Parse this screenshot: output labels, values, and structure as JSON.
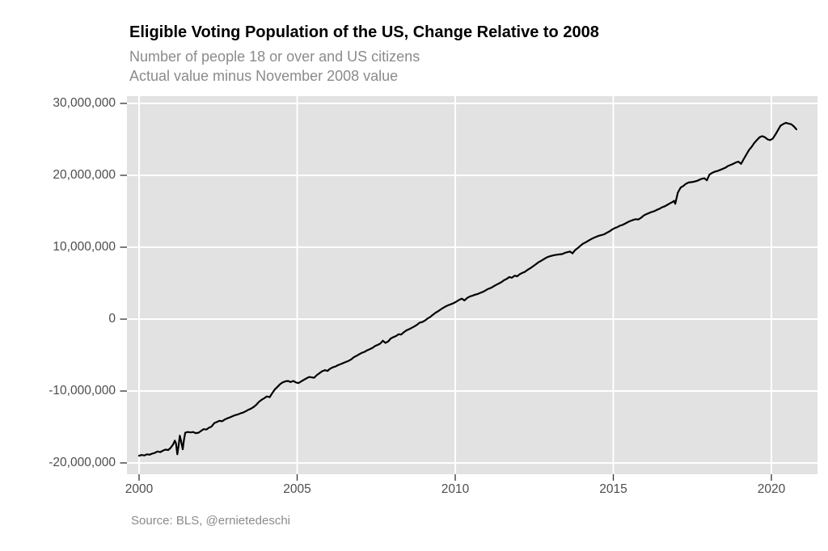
{
  "chart_data": {
    "type": "line",
    "title": "Eligible Voting Population of the US, Change Relative to 2008",
    "subtitle_line1": "Number of people 18 or over and US citizens",
    "subtitle_line2": "Actual value minus November 2008 value",
    "caption": "Source: BLS, @ernietedeschi",
    "legend": "none",
    "x_axis": {
      "label": "",
      "unit": "year",
      "tick_values": [
        2000,
        2005,
        2010,
        2015,
        2020
      ],
      "tick_labels": [
        "2000",
        "2005",
        "2010",
        "2015",
        "2020"
      ],
      "range": [
        1999.6,
        2021.5
      ]
    },
    "y_axis": {
      "label": "",
      "unit": "people",
      "tick_values": [
        30000000,
        20000000,
        10000000,
        0,
        -10000000,
        -20000000
      ],
      "tick_labels": [
        "30,000,000",
        "20,000,000",
        "10,000,000",
        "0",
        "-10,000,000",
        "-20,000,000"
      ],
      "range": [
        -21600000,
        31000000
      ]
    },
    "grid": {
      "major": "white",
      "minor": "none"
    },
    "colors": {
      "panel_bg": "#e2e2e2",
      "gridline": "#ffffff",
      "line": "#000000",
      "tick_mark": "#333333",
      "tick_label": "#4d4d4d",
      "subtitle": "#8b8b8b"
    },
    "series": [
      {
        "name": "Eligible voting population, change relative to November 2008",
        "color": "#000000",
        "unit": "millions of people",
        "points": [
          [
            2000.0,
            -19.0
          ],
          [
            2000.08,
            -18.9
          ],
          [
            2000.17,
            -18.95
          ],
          [
            2000.25,
            -18.8
          ],
          [
            2000.33,
            -18.85
          ],
          [
            2000.42,
            -18.7
          ],
          [
            2000.5,
            -18.6
          ],
          [
            2000.58,
            -18.4
          ],
          [
            2000.67,
            -18.5
          ],
          [
            2000.75,
            -18.3
          ],
          [
            2000.83,
            -18.15
          ],
          [
            2000.92,
            -18.2
          ],
          [
            2001.0,
            -17.9
          ],
          [
            2001.08,
            -17.4
          ],
          [
            2001.13,
            -16.9
          ],
          [
            2001.17,
            -17.3
          ],
          [
            2001.21,
            -18.8
          ],
          [
            2001.25,
            -17.6
          ],
          [
            2001.29,
            -16.2
          ],
          [
            2001.33,
            -17.0
          ],
          [
            2001.38,
            -18.1
          ],
          [
            2001.42,
            -16.8
          ],
          [
            2001.46,
            -15.8
          ],
          [
            2001.54,
            -15.7
          ],
          [
            2001.63,
            -15.75
          ],
          [
            2001.71,
            -15.7
          ],
          [
            2001.79,
            -15.85
          ],
          [
            2001.88,
            -15.8
          ],
          [
            2001.96,
            -15.55
          ],
          [
            2002.04,
            -15.3
          ],
          [
            2002.13,
            -15.35
          ],
          [
            2002.21,
            -15.1
          ],
          [
            2002.29,
            -14.95
          ],
          [
            2002.38,
            -14.45
          ],
          [
            2002.46,
            -14.3
          ],
          [
            2002.54,
            -14.15
          ],
          [
            2002.63,
            -14.2
          ],
          [
            2002.71,
            -13.95
          ],
          [
            2002.79,
            -13.8
          ],
          [
            2002.88,
            -13.65
          ],
          [
            2002.96,
            -13.5
          ],
          [
            2003.04,
            -13.35
          ],
          [
            2003.13,
            -13.25
          ],
          [
            2003.21,
            -13.1
          ],
          [
            2003.29,
            -13.0
          ],
          [
            2003.38,
            -12.8
          ],
          [
            2003.46,
            -12.6
          ],
          [
            2003.54,
            -12.45
          ],
          [
            2003.63,
            -12.2
          ],
          [
            2003.71,
            -11.9
          ],
          [
            2003.79,
            -11.5
          ],
          [
            2003.88,
            -11.2
          ],
          [
            2003.96,
            -11.0
          ],
          [
            2004.04,
            -10.75
          ],
          [
            2004.13,
            -10.85
          ],
          [
            2004.21,
            -10.3
          ],
          [
            2004.29,
            -9.8
          ],
          [
            2004.38,
            -9.4
          ],
          [
            2004.46,
            -9.05
          ],
          [
            2004.54,
            -8.8
          ],
          [
            2004.63,
            -8.65
          ],
          [
            2004.71,
            -8.6
          ],
          [
            2004.79,
            -8.75
          ],
          [
            2004.88,
            -8.6
          ],
          [
            2004.96,
            -8.8
          ],
          [
            2005.04,
            -8.9
          ],
          [
            2005.13,
            -8.65
          ],
          [
            2005.21,
            -8.45
          ],
          [
            2005.29,
            -8.25
          ],
          [
            2005.38,
            -8.05
          ],
          [
            2005.46,
            -8.1
          ],
          [
            2005.54,
            -8.15
          ],
          [
            2005.63,
            -7.75
          ],
          [
            2005.71,
            -7.5
          ],
          [
            2005.79,
            -7.25
          ],
          [
            2005.88,
            -7.1
          ],
          [
            2005.96,
            -7.2
          ],
          [
            2006.04,
            -6.9
          ],
          [
            2006.13,
            -6.7
          ],
          [
            2006.21,
            -6.6
          ],
          [
            2006.29,
            -6.4
          ],
          [
            2006.38,
            -6.25
          ],
          [
            2006.46,
            -6.1
          ],
          [
            2006.54,
            -5.95
          ],
          [
            2006.63,
            -5.8
          ],
          [
            2006.71,
            -5.6
          ],
          [
            2006.79,
            -5.3
          ],
          [
            2006.88,
            -5.1
          ],
          [
            2006.96,
            -4.9
          ],
          [
            2007.04,
            -4.7
          ],
          [
            2007.13,
            -4.55
          ],
          [
            2007.21,
            -4.35
          ],
          [
            2007.29,
            -4.2
          ],
          [
            2007.38,
            -4.0
          ],
          [
            2007.46,
            -3.75
          ],
          [
            2007.54,
            -3.6
          ],
          [
            2007.63,
            -3.4
          ],
          [
            2007.71,
            -3.0
          ],
          [
            2007.79,
            -3.3
          ],
          [
            2007.88,
            -3.1
          ],
          [
            2007.96,
            -2.7
          ],
          [
            2008.04,
            -2.5
          ],
          [
            2008.13,
            -2.35
          ],
          [
            2008.21,
            -2.1
          ],
          [
            2008.29,
            -2.15
          ],
          [
            2008.38,
            -1.8
          ],
          [
            2008.46,
            -1.55
          ],
          [
            2008.54,
            -1.4
          ],
          [
            2008.63,
            -1.2
          ],
          [
            2008.71,
            -1.0
          ],
          [
            2008.79,
            -0.8
          ],
          [
            2008.87,
            -0.5
          ],
          [
            2008.96,
            -0.4
          ],
          [
            2009.04,
            -0.2
          ],
          [
            2009.13,
            0.1
          ],
          [
            2009.21,
            0.3
          ],
          [
            2009.29,
            0.6
          ],
          [
            2009.38,
            0.9
          ],
          [
            2009.46,
            1.1
          ],
          [
            2009.54,
            1.35
          ],
          [
            2009.63,
            1.6
          ],
          [
            2009.71,
            1.8
          ],
          [
            2009.79,
            1.95
          ],
          [
            2009.88,
            2.1
          ],
          [
            2009.96,
            2.25
          ],
          [
            2010.04,
            2.45
          ],
          [
            2010.13,
            2.7
          ],
          [
            2010.21,
            2.85
          ],
          [
            2010.29,
            2.6
          ],
          [
            2010.38,
            2.95
          ],
          [
            2010.46,
            3.15
          ],
          [
            2010.54,
            3.25
          ],
          [
            2010.63,
            3.4
          ],
          [
            2010.71,
            3.5
          ],
          [
            2010.79,
            3.65
          ],
          [
            2010.88,
            3.8
          ],
          [
            2010.96,
            4.0
          ],
          [
            2011.04,
            4.2
          ],
          [
            2011.13,
            4.35
          ],
          [
            2011.21,
            4.55
          ],
          [
            2011.29,
            4.75
          ],
          [
            2011.38,
            4.95
          ],
          [
            2011.46,
            5.15
          ],
          [
            2011.54,
            5.4
          ],
          [
            2011.63,
            5.6
          ],
          [
            2011.71,
            5.85
          ],
          [
            2011.79,
            5.75
          ],
          [
            2011.88,
            6.05
          ],
          [
            2011.96,
            5.95
          ],
          [
            2012.04,
            6.25
          ],
          [
            2012.13,
            6.45
          ],
          [
            2012.21,
            6.6
          ],
          [
            2012.29,
            6.85
          ],
          [
            2012.38,
            7.1
          ],
          [
            2012.46,
            7.35
          ],
          [
            2012.54,
            7.6
          ],
          [
            2012.63,
            7.9
          ],
          [
            2012.71,
            8.1
          ],
          [
            2012.79,
            8.3
          ],
          [
            2012.88,
            8.55
          ],
          [
            2012.96,
            8.7
          ],
          [
            2013.04,
            8.8
          ],
          [
            2013.13,
            8.9
          ],
          [
            2013.21,
            8.95
          ],
          [
            2013.29,
            9.0
          ],
          [
            2013.38,
            9.05
          ],
          [
            2013.46,
            9.2
          ],
          [
            2013.54,
            9.3
          ],
          [
            2013.63,
            9.4
          ],
          [
            2013.71,
            9.15
          ],
          [
            2013.79,
            9.6
          ],
          [
            2013.88,
            9.9
          ],
          [
            2013.96,
            10.2
          ],
          [
            2014.04,
            10.5
          ],
          [
            2014.13,
            10.7
          ],
          [
            2014.21,
            10.9
          ],
          [
            2014.29,
            11.1
          ],
          [
            2014.38,
            11.3
          ],
          [
            2014.46,
            11.45
          ],
          [
            2014.54,
            11.6
          ],
          [
            2014.63,
            11.7
          ],
          [
            2014.71,
            11.8
          ],
          [
            2014.79,
            12.0
          ],
          [
            2014.88,
            12.2
          ],
          [
            2014.96,
            12.45
          ],
          [
            2015.04,
            12.65
          ],
          [
            2015.13,
            12.8
          ],
          [
            2015.21,
            13.0
          ],
          [
            2015.29,
            13.1
          ],
          [
            2015.38,
            13.3
          ],
          [
            2015.46,
            13.5
          ],
          [
            2015.54,
            13.65
          ],
          [
            2015.63,
            13.8
          ],
          [
            2015.71,
            13.9
          ],
          [
            2015.79,
            13.85
          ],
          [
            2015.88,
            14.1
          ],
          [
            2015.96,
            14.4
          ],
          [
            2016.04,
            14.6
          ],
          [
            2016.13,
            14.75
          ],
          [
            2016.21,
            14.9
          ],
          [
            2016.29,
            15.0
          ],
          [
            2016.38,
            15.2
          ],
          [
            2016.46,
            15.35
          ],
          [
            2016.54,
            15.55
          ],
          [
            2016.63,
            15.7
          ],
          [
            2016.71,
            15.9
          ],
          [
            2016.79,
            16.1
          ],
          [
            2016.88,
            16.3
          ],
          [
            2016.92,
            16.45
          ],
          [
            2016.96,
            16.05
          ],
          [
            2017.04,
            17.6
          ],
          [
            2017.13,
            18.3
          ],
          [
            2017.21,
            18.5
          ],
          [
            2017.29,
            18.8
          ],
          [
            2017.38,
            19.0
          ],
          [
            2017.46,
            19.05
          ],
          [
            2017.54,
            19.1
          ],
          [
            2017.63,
            19.2
          ],
          [
            2017.71,
            19.35
          ],
          [
            2017.79,
            19.5
          ],
          [
            2017.88,
            19.6
          ],
          [
            2017.96,
            19.3
          ],
          [
            2018.04,
            20.1
          ],
          [
            2018.13,
            20.35
          ],
          [
            2018.21,
            20.5
          ],
          [
            2018.29,
            20.6
          ],
          [
            2018.38,
            20.75
          ],
          [
            2018.46,
            20.9
          ],
          [
            2018.54,
            21.05
          ],
          [
            2018.63,
            21.3
          ],
          [
            2018.71,
            21.45
          ],
          [
            2018.79,
            21.6
          ],
          [
            2018.88,
            21.8
          ],
          [
            2018.96,
            21.9
          ],
          [
            2019.04,
            21.6
          ],
          [
            2019.13,
            22.3
          ],
          [
            2019.21,
            22.9
          ],
          [
            2019.29,
            23.5
          ],
          [
            2019.38,
            24.0
          ],
          [
            2019.46,
            24.5
          ],
          [
            2019.54,
            24.9
          ],
          [
            2019.63,
            25.3
          ],
          [
            2019.71,
            25.45
          ],
          [
            2019.79,
            25.3
          ],
          [
            2019.88,
            25.0
          ],
          [
            2019.96,
            24.9
          ],
          [
            2020.04,
            25.1
          ],
          [
            2020.13,
            25.7
          ],
          [
            2020.21,
            26.3
          ],
          [
            2020.29,
            26.9
          ],
          [
            2020.38,
            27.15
          ],
          [
            2020.46,
            27.3
          ],
          [
            2020.54,
            27.2
          ],
          [
            2020.63,
            27.1
          ],
          [
            2020.71,
            26.8
          ],
          [
            2020.79,
            26.4
          ]
        ]
      }
    ]
  }
}
